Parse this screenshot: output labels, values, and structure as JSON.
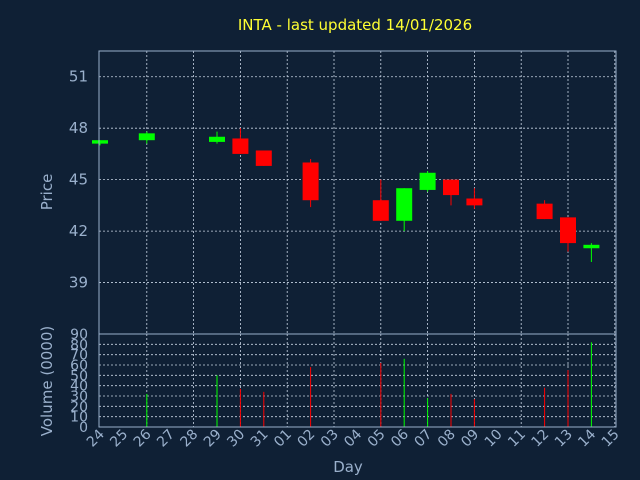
{
  "chart_data": {
    "type": "candlestick",
    "title": "INTA - last updated 14/01/2026",
    "xlabel": "Day",
    "ylabel": "Price",
    "volume_label": "Volume (0000)",
    "grid": true,
    "price_ylim": [
      36.0,
      52.5
    ],
    "price_ticks": [
      39,
      42,
      45,
      48,
      51
    ],
    "volume_ylim": [
      0,
      90
    ],
    "volume_ticks": [
      0,
      10,
      20,
      30,
      40,
      50,
      60,
      70,
      80,
      90
    ],
    "x_tick_labels": [
      "24",
      "25",
      "26",
      "27",
      "28",
      "29",
      "30",
      "31",
      "01",
      "02",
      "03",
      "04",
      "05",
      "06",
      "07",
      "08",
      "09",
      "10",
      "11",
      "12",
      "13",
      "14",
      "15"
    ],
    "candles": [
      {
        "day": "24",
        "open": 47.1,
        "high": 47.3,
        "low": 47.0,
        "close": 47.3,
        "volume": 0
      },
      {
        "day": "26",
        "open": 47.3,
        "high": 47.8,
        "low": 47.1,
        "close": 47.7,
        "volume": 32
      },
      {
        "day": "29",
        "open": 47.2,
        "high": 47.8,
        "low": 47.1,
        "close": 47.5,
        "volume": 50
      },
      {
        "day": "30",
        "open": 47.4,
        "high": 48.0,
        "low": 46.5,
        "close": 46.5,
        "volume": 37
      },
      {
        "day": "31",
        "open": 46.7,
        "high": 46.7,
        "low": 45.8,
        "close": 45.8,
        "volume": 34
      },
      {
        "day": "02",
        "open": 46.0,
        "high": 46.2,
        "low": 43.4,
        "close": 43.8,
        "volume": 58
      },
      {
        "day": "05",
        "open": 43.8,
        "high": 45.0,
        "low": 42.6,
        "close": 42.6,
        "volume": 62
      },
      {
        "day": "06",
        "open": 42.6,
        "high": 44.5,
        "low": 42.0,
        "close": 44.5,
        "volume": 66
      },
      {
        "day": "07",
        "open": 44.4,
        "high": 45.5,
        "low": 44.3,
        "close": 45.4,
        "volume": 28
      },
      {
        "day": "08",
        "open": 45.0,
        "high": 45.0,
        "low": 43.5,
        "close": 44.1,
        "volume": 32
      },
      {
        "day": "09",
        "open": 43.9,
        "high": 44.5,
        "low": 43.3,
        "close": 43.5,
        "volume": 27
      },
      {
        "day": "12",
        "open": 43.6,
        "high": 43.8,
        "low": 42.7,
        "close": 42.7,
        "volume": 38
      },
      {
        "day": "13",
        "open": 42.8,
        "high": 42.8,
        "low": 40.8,
        "close": 41.3,
        "volume": 55
      },
      {
        "day": "14",
        "open": 41.0,
        "high": 41.3,
        "low": 40.2,
        "close": 41.2,
        "volume": 82
      }
    ],
    "up_color": "#00ff00",
    "down_color": "#ff0000"
  }
}
